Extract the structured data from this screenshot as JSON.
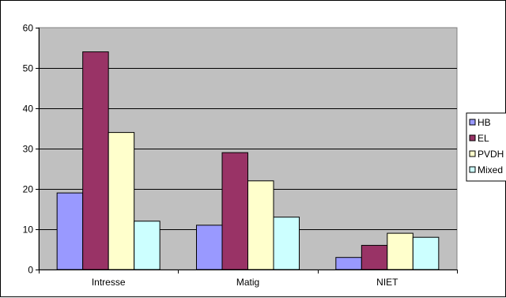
{
  "chart_data": {
    "type": "bar",
    "categories": [
      "Intresse",
      "Matig",
      "NIET"
    ],
    "series": [
      {
        "name": "HB",
        "values": [
          19,
          11,
          3
        ],
        "color": "#9999FF"
      },
      {
        "name": "EL",
        "values": [
          54,
          29,
          6
        ],
        "color": "#993366"
      },
      {
        "name": "PVDH",
        "values": [
          34,
          22,
          9
        ],
        "color": "#FFFFCC"
      },
      {
        "name": "Mixed",
        "values": [
          12,
          13,
          8
        ],
        "color": "#CCFFFF"
      }
    ],
    "ylim": [
      0,
      60
    ],
    "yticks": [
      "0",
      "10",
      "20",
      "30",
      "40",
      "50",
      "60"
    ],
    "grid": true,
    "legend_position": "right",
    "plot_background": "#C0C0C0"
  }
}
